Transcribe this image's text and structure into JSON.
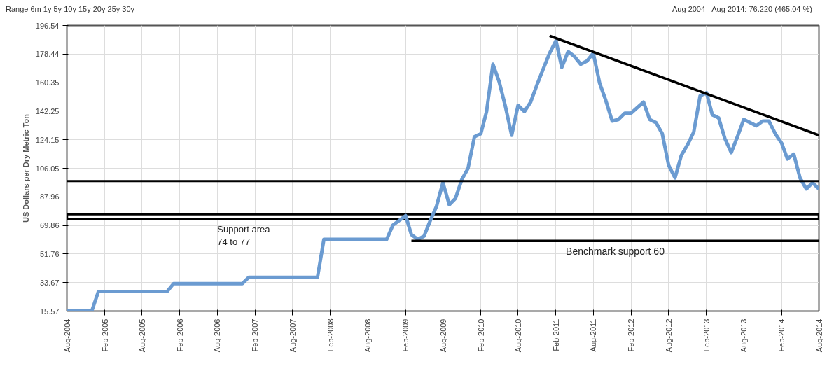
{
  "chart_data": {
    "type": "line",
    "ylabel": "US Dollars per Dry Metric Ton",
    "annotations": [
      "Range 6m 1y 5y 10y 15y 20y 25y 30y",
      "Aug 2004 - Aug 2014: 76.220 (465.04 %)",
      "Benchmark support 60"
    ],
    "x": [
      "2004-08",
      "2004-12",
      "2005-01",
      "2005-12",
      "2006-01",
      "2006-12",
      "2007-01",
      "2007-12",
      "2008-01",
      "2008-11",
      "2008-12",
      "2009-02",
      "2009-03",
      "2009-04",
      "2009-05",
      "2009-06",
      "2009-07",
      "2009-08",
      "2009-09",
      "2009-10",
      "2009-11",
      "2009-12",
      "2010-01",
      "2010-02",
      "2010-03",
      "2010-04",
      "2010-05",
      "2010-06",
      "2010-07",
      "2010-08",
      "2010-09",
      "2010-10",
      "2010-11",
      "2010-12",
      "2011-01",
      "2011-02",
      "2011-03",
      "2011-04",
      "2011-05",
      "2011-06",
      "2011-07",
      "2011-08",
      "2011-09",
      "2011-10",
      "2011-11",
      "2011-12",
      "2012-01",
      "2012-02",
      "2012-04",
      "2012-05",
      "2012-06",
      "2012-07",
      "2012-08",
      "2012-09",
      "2012-10",
      "2012-11",
      "2012-12",
      "2013-01",
      "2013-02",
      "2013-03",
      "2013-04",
      "2013-05",
      "2013-06",
      "2013-07",
      "2013-08",
      "2013-09",
      "2013-10",
      "2013-11",
      "2013-12",
      "2014-01",
      "2014-02",
      "2014-03",
      "2014-04",
      "2014-05",
      "2014-06",
      "2014-07",
      "2014-08"
    ],
    "series": [
      {
        "color": "#6b9bd1",
        "values": [
          16,
          16,
          28,
          28,
          33,
          33,
          37,
          37,
          61,
          61,
          70,
          76,
          64,
          61,
          63,
          73,
          82,
          97,
          83,
          87,
          99,
          106,
          126,
          128,
          142,
          172,
          161,
          145,
          127,
          146,
          142,
          148,
          159,
          169,
          179,
          187,
          170,
          180,
          177,
          172,
          174,
          179,
          160,
          149,
          136,
          137,
          141,
          141,
          148,
          137,
          135,
          128,
          108,
          100,
          114,
          121,
          129,
          152,
          154,
          140,
          138,
          125,
          116,
          126,
          137,
          135,
          133,
          136,
          136,
          128,
          122,
          112,
          115,
          100,
          93,
          97,
          93
        ]
      },
      {
        "type": "line",
        "color": "#000000",
        "x": [
          "2011-01",
          "2014-08"
        ],
        "values": [
          190,
          127
        ]
      },
      {
        "type": "line",
        "color": "#000000",
        "x": [
          "2009-03",
          "2014-08"
        ],
        "values": [
          60,
          60
        ]
      }
    ],
    "xlim": [
      "2004-08",
      "2014-08"
    ],
    "xticks": [
      {
        "value": "2004-08",
        "label": "Aug-2004"
      },
      {
        "value": "2005-02",
        "label": "Feb-2005"
      },
      {
        "value": "2005-08",
        "label": "Aug-2005"
      },
      {
        "value": "2006-02",
        "label": "Feb-2006"
      },
      {
        "value": "2006-08",
        "label": "Aug-2006"
      },
      {
        "value": "2007-02",
        "label": "Feb-2007"
      },
      {
        "value": "2007-08",
        "label": "Aug-2007"
      },
      {
        "value": "2008-02",
        "label": "Feb-2008"
      },
      {
        "value": "2008-08",
        "label": "Aug-2008"
      },
      {
        "value": "2009-02",
        "label": "Feb-2009"
      },
      {
        "value": "2009-08",
        "label": "Aug-2009"
      },
      {
        "value": "2010-02",
        "label": "Feb-2010"
      },
      {
        "value": "2010-08",
        "label": "Aug-2010"
      },
      {
        "value": "2011-02",
        "label": "Feb-2011"
      },
      {
        "value": "2011-08",
        "label": "Aug-2011"
      },
      {
        "value": "2012-02",
        "label": "Feb-2012"
      },
      {
        "value": "2012-08",
        "label": "Aug-2012"
      },
      {
        "value": "2013-02",
        "label": "Feb-2013"
      },
      {
        "value": "2013-08",
        "label": "Aug-2013"
      },
      {
        "value": "2014-02",
        "label": "Feb-2014"
      },
      {
        "value": "2014-08",
        "label": "Aug-2014"
      }
    ],
    "ylim": [
      15.57,
      196.54
    ],
    "yticks": [
      15.57,
      33.67,
      51.76,
      69.86,
      87.96,
      106.05,
      124.15,
      142.25,
      160.35,
      178.44,
      196.54
    ],
    "ref_lines": [
      {
        "axis": "y",
        "value": 98,
        "color": "#000000"
      }
    ],
    "bands": [
      {
        "axis": "y",
        "from": 74,
        "to": 77,
        "label": "Support area\n74 to 77",
        "color": "#000000"
      }
    ],
    "grid": true,
    "line_style": "solid",
    "marker": "none"
  }
}
